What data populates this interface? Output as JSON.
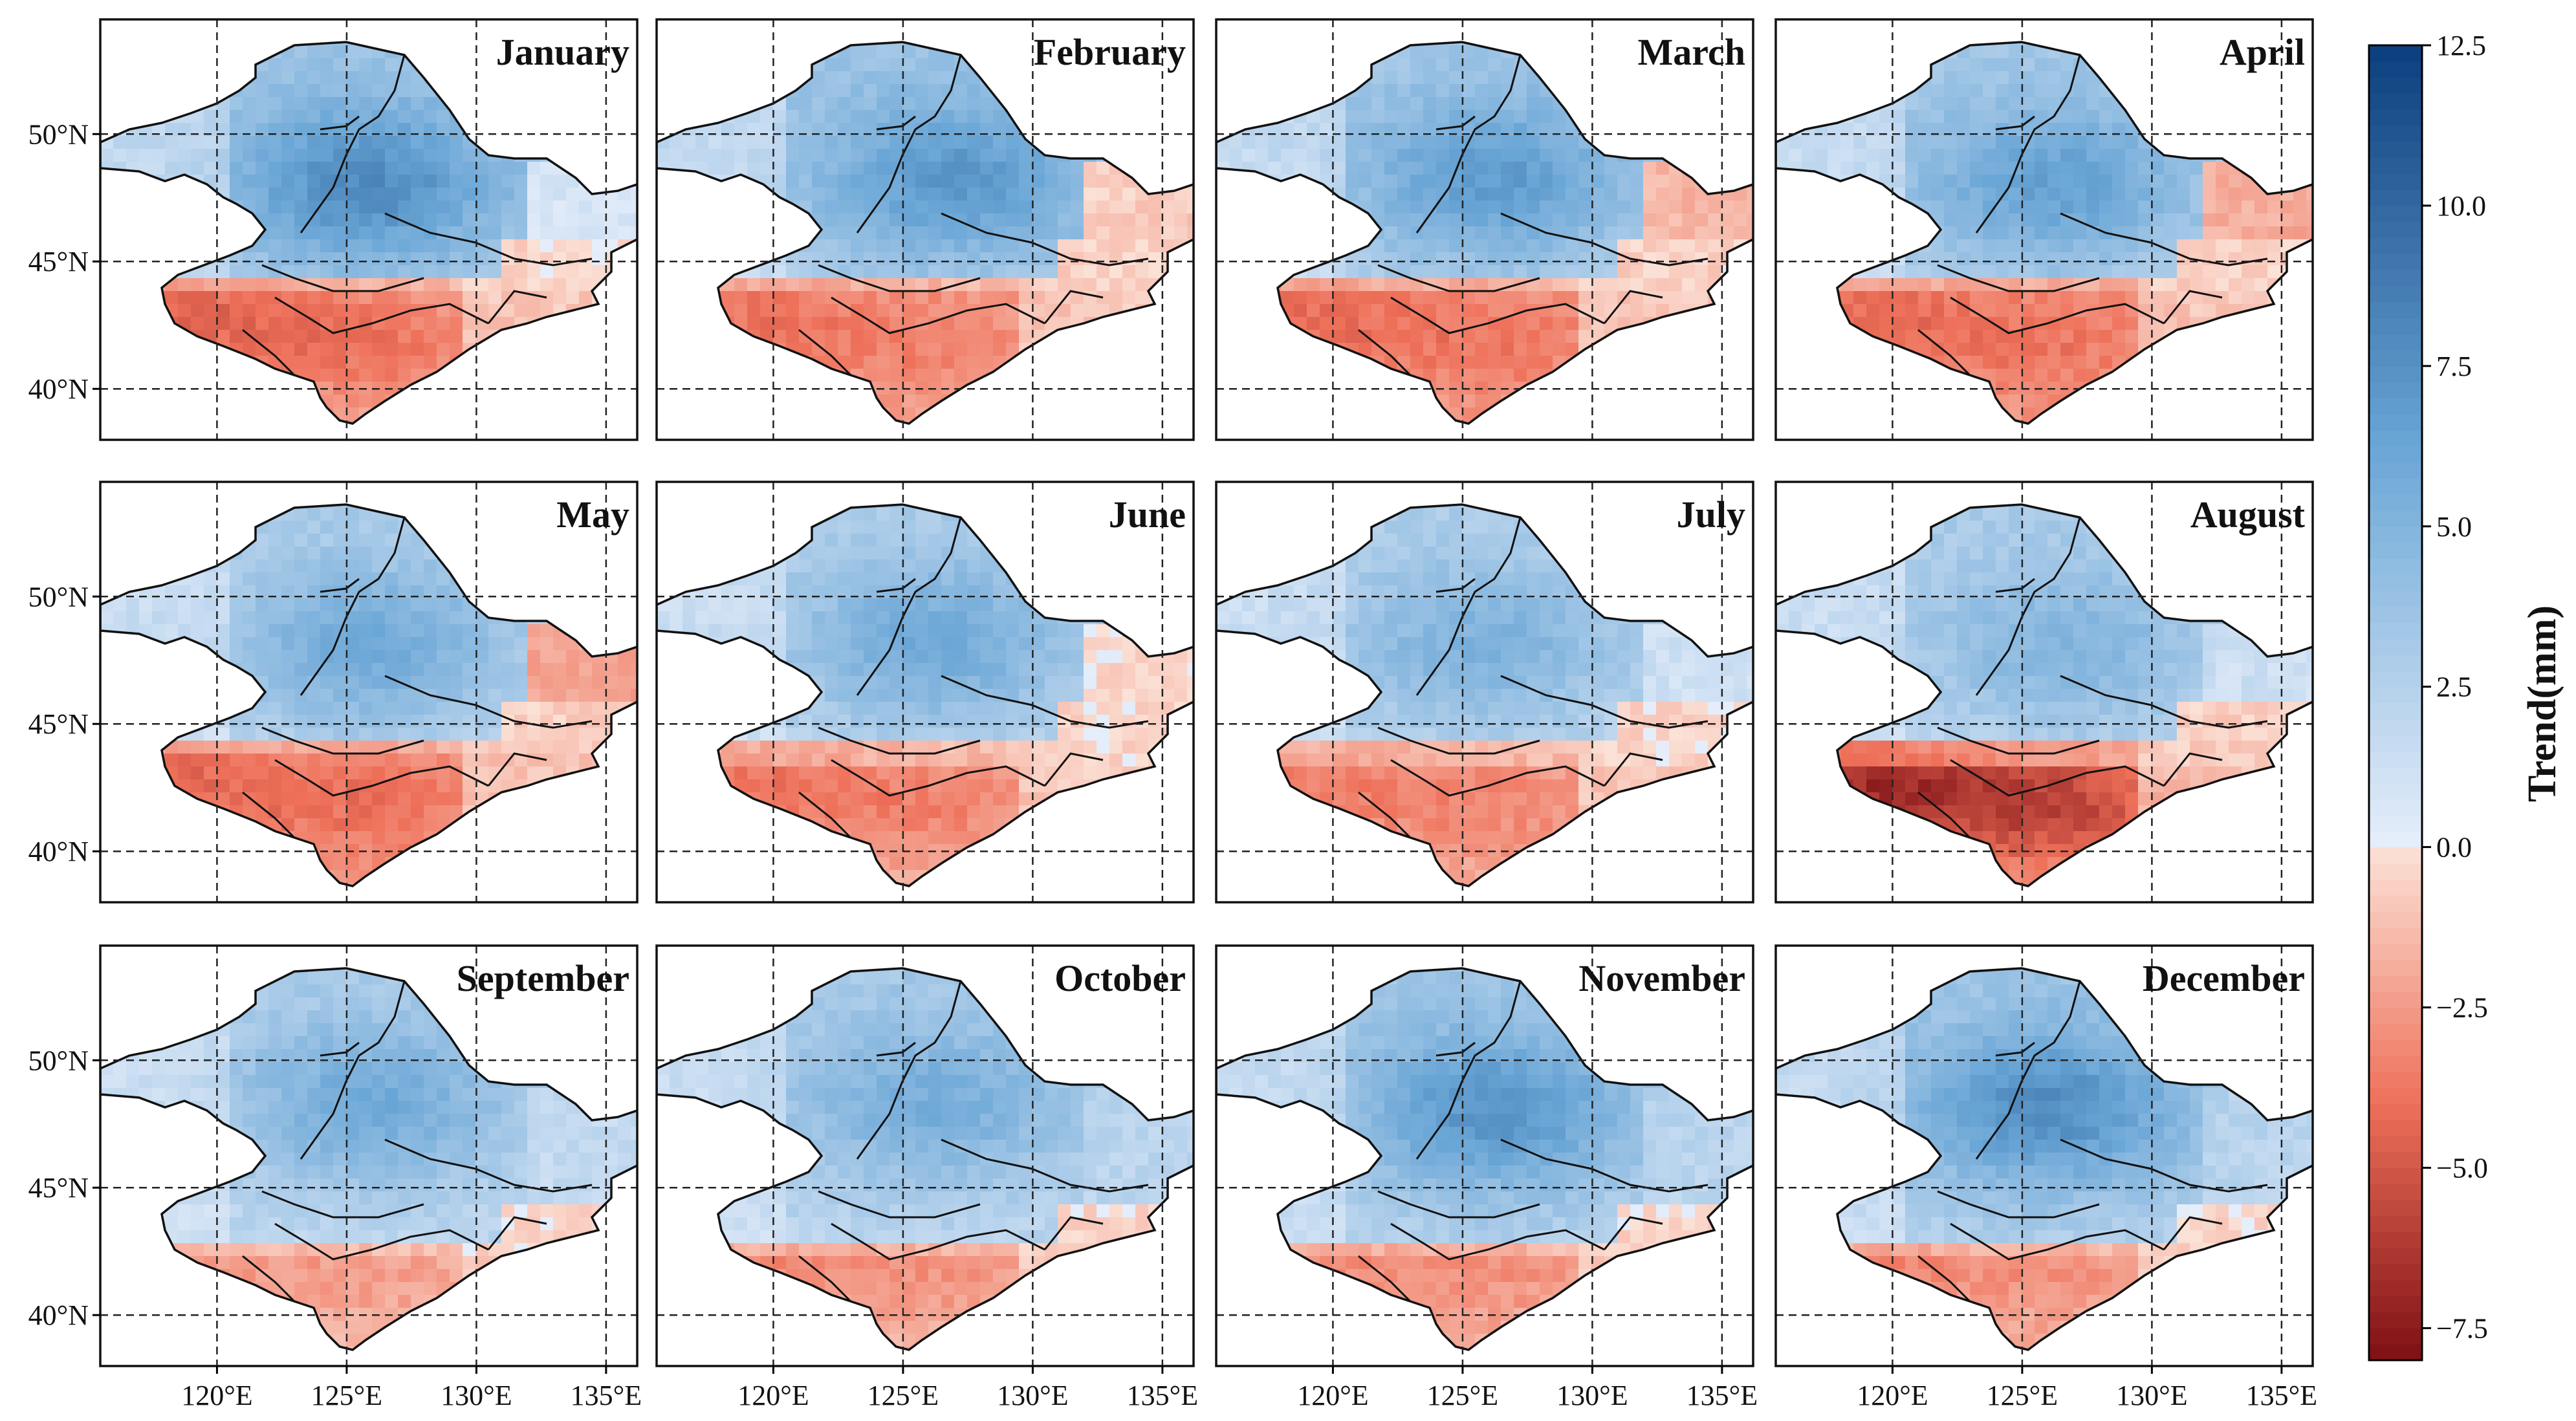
{
  "figure": {
    "panels": [
      {
        "title": "January",
        "pattern": "jan"
      },
      {
        "title": "February",
        "pattern": "feb"
      },
      {
        "title": "March",
        "pattern": "mar"
      },
      {
        "title": "April",
        "pattern": "apr"
      },
      {
        "title": "May",
        "pattern": "may"
      },
      {
        "title": "June",
        "pattern": "jun"
      },
      {
        "title": "July",
        "pattern": "jul"
      },
      {
        "title": "August",
        "pattern": "aug"
      },
      {
        "title": "September",
        "pattern": "sep"
      },
      {
        "title": "October",
        "pattern": "oct"
      },
      {
        "title": "November",
        "pattern": "nov"
      },
      {
        "title": "December",
        "pattern": "dec"
      }
    ],
    "lat_ticks": [
      "50°N",
      "45°N",
      "40°N"
    ],
    "lon_ticks": [
      "120°E",
      "125°E",
      "130°E",
      "135°E"
    ],
    "lat_values": [
      50,
      45,
      40
    ],
    "lon_values": [
      120,
      125,
      130,
      135
    ],
    "map_extent": {
      "lon_min": 115.5,
      "lon_max": 136.2,
      "lat_min": 38.0,
      "lat_max": 54.5
    },
    "colorbar": {
      "label": "Trend(mm)",
      "ticks": [
        "12.5",
        "10.0",
        "7.5",
        "5.0",
        "2.5",
        "0.0",
        "−2.5",
        "−5.0",
        "−7.5"
      ],
      "tick_values": [
        12.5,
        10.0,
        7.5,
        5.0,
        2.5,
        0.0,
        -2.5,
        -5.0,
        -7.5
      ],
      "min": -8.0,
      "max": 12.5,
      "colors": {
        "pos_light": "#e6eefa",
        "pos_mid": "#6aa6d6",
        "pos_dark": "#0b3e7d",
        "neg_light": "#fbe2d7",
        "neg_mid": "#ee7059",
        "neg_dark": "#7d0f14"
      }
    }
  }
}
